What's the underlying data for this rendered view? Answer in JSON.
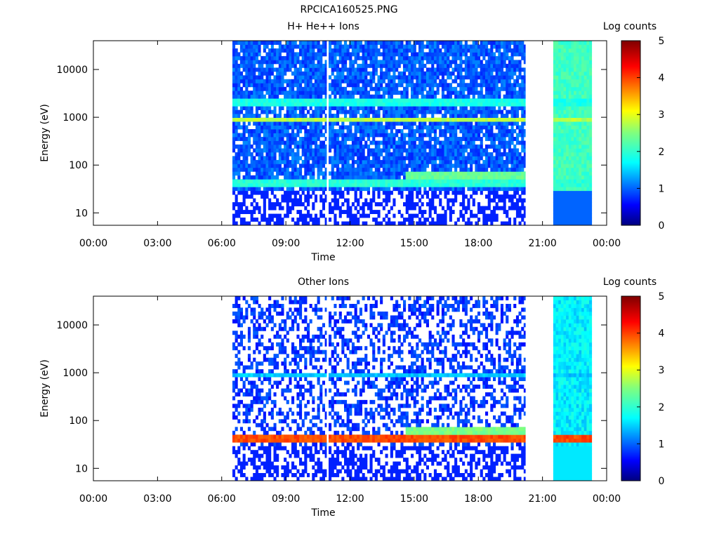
{
  "figure_title": "RPCICA160525.PNG",
  "chart_data": [
    {
      "type": "heatmap",
      "title": "H+ He++ Ions",
      "xlabel": "Time",
      "ylabel": "Energy (eV)",
      "yscale": "log",
      "xlim_hours": [
        0,
        24
      ],
      "ylim": [
        5.5,
        40000
      ],
      "x_ticks": [
        "00:00",
        "03:00",
        "06:00",
        "09:00",
        "12:00",
        "15:00",
        "18:00",
        "21:00",
        "00:00"
      ],
      "y_ticks": [
        "10",
        "100",
        "1000",
        "10000"
      ],
      "colorbar": {
        "label": "Log counts",
        "range": [
          0,
          5
        ],
        "ticks": [
          "0",
          "1",
          "2",
          "3",
          "4",
          "5"
        ]
      },
      "data_coverage_hours": [
        [
          6.5,
          10.9
        ],
        [
          11.0,
          20.2
        ],
        [
          21.5,
          23.3
        ]
      ],
      "features": [
        {
          "description": "persistent band",
          "energy_eV": 900,
          "log_counts": 2.6
        },
        {
          "description": "persistent band",
          "energy_eV": 2000,
          "log_counts": 1.7
        },
        {
          "description": "persistent band",
          "energy_eV": 45,
          "log_counts": 1.8
        },
        {
          "description": "enhanced band",
          "energy_eV": 65,
          "time_hours": [
            14.5,
            20.2
          ],
          "log_counts": 2.2
        }
      ]
    },
    {
      "type": "heatmap",
      "title": "Other Ions",
      "xlabel": "Time",
      "ylabel": "Energy (eV)",
      "yscale": "log",
      "xlim_hours": [
        0,
        24
      ],
      "ylim": [
        5.5,
        40000
      ],
      "x_ticks": [
        "00:00",
        "03:00",
        "06:00",
        "09:00",
        "12:00",
        "15:00",
        "18:00",
        "21:00",
        "00:00"
      ],
      "y_ticks": [
        "10",
        "100",
        "1000",
        "10000"
      ],
      "colorbar": {
        "label": "Log counts",
        "range": [
          0,
          5
        ],
        "ticks": [
          "0",
          "1",
          "2",
          "3",
          "4",
          "5"
        ]
      },
      "data_coverage_hours": [
        [
          6.5,
          10.9
        ],
        [
          11.0,
          20.2
        ],
        [
          21.5,
          23.3
        ]
      ],
      "features": [
        {
          "description": "intense band",
          "energy_eV": 42,
          "log_counts": 3.8
        },
        {
          "description": "band",
          "energy_eV": 900,
          "log_counts": 1.3
        },
        {
          "description": "enhanced band",
          "energy_eV": 60,
          "time_hours": [
            14.5,
            20.2
          ],
          "log_counts": 2.3
        }
      ]
    }
  ]
}
